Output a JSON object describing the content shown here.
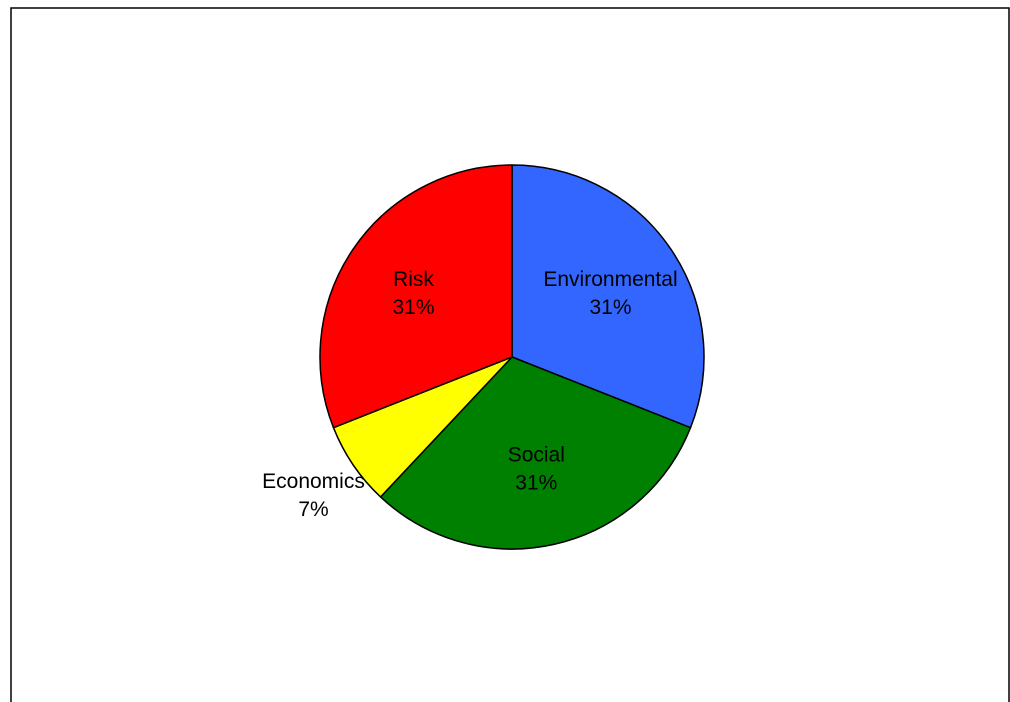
{
  "chart_data": {
    "type": "pie",
    "start_angle_deg": 0,
    "direction": "clockwise",
    "slices": [
      {
        "label": "Environmental",
        "value": 31,
        "value_label": "31%",
        "color": "#3366ff",
        "label_color": "#000000"
      },
      {
        "label": "Social",
        "value": 31,
        "value_label": "31%",
        "color": "#008000",
        "label_color": "#000000"
      },
      {
        "label": "Economics",
        "value": 7,
        "value_label": "7%",
        "color": "#ffff00",
        "label_color": "#000000"
      },
      {
        "label": "Risk",
        "value": 31,
        "value_label": "31%",
        "color": "#ff0000",
        "label_color": "#000000"
      }
    ],
    "border_color": "#000000",
    "background": "#ffffff"
  }
}
